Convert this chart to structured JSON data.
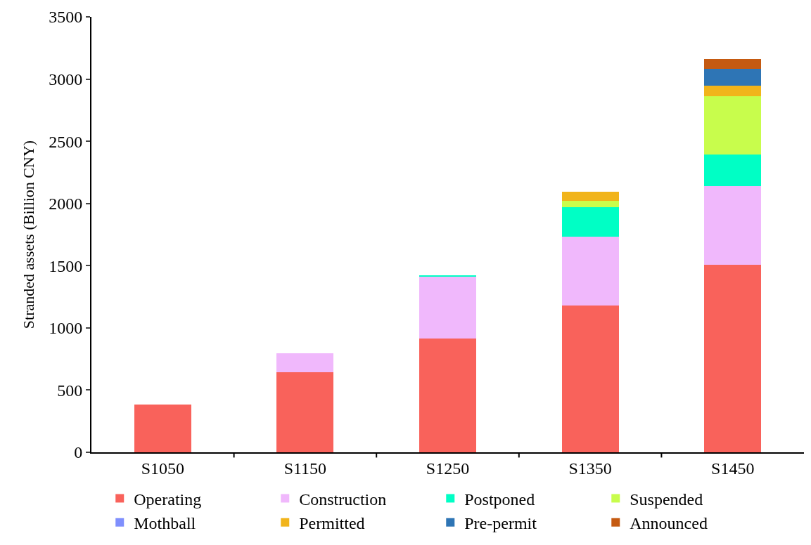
{
  "chart_data": {
    "type": "bar",
    "stacked": true,
    "ylabel": "Stranded assets (Billion CNY)",
    "categories": [
      "S1050",
      "S1150",
      "S1250",
      "S1350",
      "S1450"
    ],
    "series": [
      {
        "name": "Operating",
        "color": "#f9625b",
        "values": [
          384,
          642,
          914,
          1181,
          1508
        ]
      },
      {
        "name": "Construction",
        "color": "#f0b8fc",
        "values": [
          0,
          154,
          498,
          554,
          633
        ]
      },
      {
        "name": "Postponed",
        "color": "#00ffc5",
        "values": [
          0,
          0,
          10,
          233,
          255
        ]
      },
      {
        "name": "Suspended",
        "color": "#c8fd4c",
        "values": [
          0,
          0,
          0,
          53,
          465
        ]
      },
      {
        "name": "Mothball",
        "color": "#7f8ffd",
        "values": [
          0,
          0,
          0,
          0,
          0
        ]
      },
      {
        "name": "Permitted",
        "color": "#f1b41b",
        "values": [
          0,
          0,
          0,
          76,
          85
        ]
      },
      {
        "name": "Pre-permit",
        "color": "#2e75b5",
        "values": [
          0,
          0,
          0,
          0,
          139
        ]
      },
      {
        "name": "Announced",
        "color": "#c55a11",
        "values": [
          0,
          0,
          0,
          0,
          77
        ]
      }
    ],
    "ylim": [
      0,
      3500
    ],
    "yticks": [
      0,
      500,
      1000,
      1500,
      2000,
      2500,
      3000,
      3500
    ],
    "legend": "bottom"
  }
}
